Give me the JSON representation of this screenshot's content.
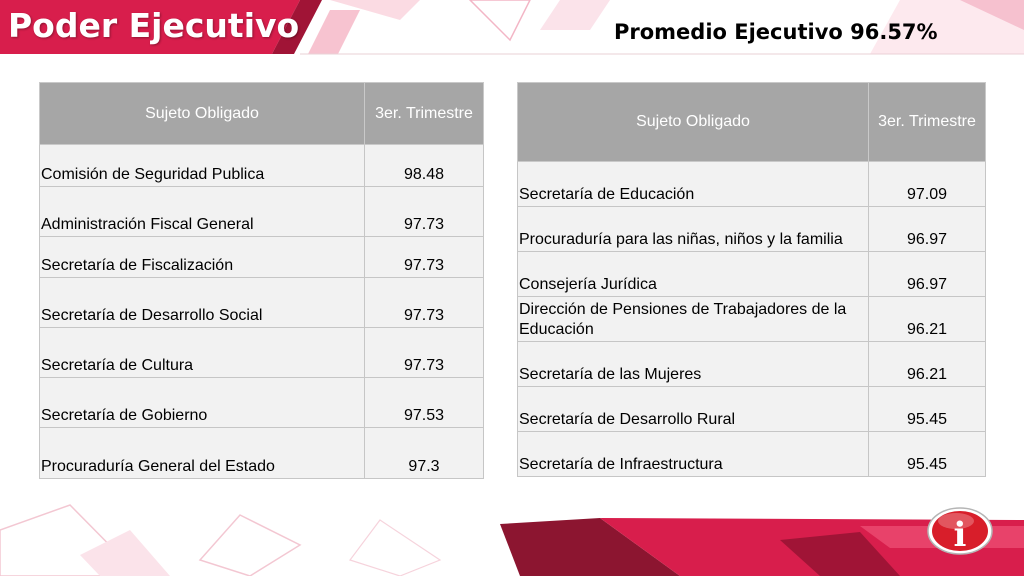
{
  "header": {
    "title": "Poder Ejecutivo",
    "average": "Promedio Ejecutivo 96.57%"
  },
  "colors": {
    "red": "#d81e4c",
    "dark_red": "#a01436",
    "header_cell": "#a6a6a6",
    "body_cell": "#f2f2f2"
  },
  "left_table": {
    "headers": [
      "Sujeto Obligado",
      "3er. Trimestre"
    ],
    "rows": [
      {
        "name": "Comisión de Seguridad Publica",
        "value": "98.48"
      },
      {
        "name": "Administración  Fiscal General",
        "value": "97.73"
      },
      {
        "name": "Secretaría de Fiscalización",
        "value": "97.73"
      },
      {
        "name": "Secretaría de Desarrollo Social",
        "value": "97.73"
      },
      {
        "name": "Secretaría de Cultura",
        "value": "97.73"
      },
      {
        "name": "Secretaría de Gobierno",
        "value": "97.53"
      },
      {
        "name": "Procuraduría General del Estado",
        "value": "97.3"
      }
    ]
  },
  "right_table": {
    "headers": [
      "Sujeto Obligado",
      "3er. Trimestre"
    ],
    "rows": [
      {
        "name": "Secretaría de Educación",
        "value": "97.09"
      },
      {
        "name": "Procuraduría para las niñas, niños y la familia",
        "value": "96.97"
      },
      {
        "name": "Consejería Jurídica",
        "value": "96.97"
      },
      {
        "name": "Dirección de Pensiones de Trabajadores de la Educación",
        "value": "96.21"
      },
      {
        "name": "Secretaría de las Mujeres",
        "value": "96.21"
      },
      {
        "name": "Secretaría de Desarrollo  Rural",
        "value": "95.45"
      },
      {
        "name": "Secretaría de Infraestructura",
        "value": "95.45"
      }
    ]
  },
  "logo": {
    "icon": "info-icon",
    "glyph": "i"
  }
}
